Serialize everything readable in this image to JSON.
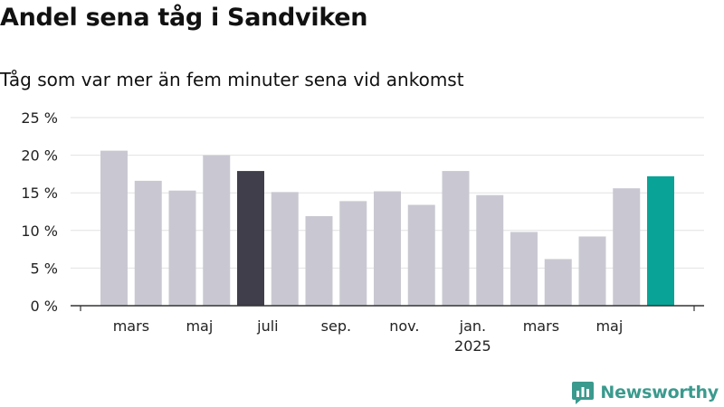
{
  "title": "Andel sena tåg i Sandviken",
  "subtitle": "Tåg som var mer än fem minuter sena vid ankomst",
  "brand": {
    "name": "Newsworthy",
    "icon": "chart-logo-icon",
    "color": "#3b9a8e"
  },
  "chart_data": {
    "type": "bar",
    "title": "Andel sena tåg i Sandviken",
    "subtitle": "Tåg som var mer än fem minuter sena vid ankomst",
    "categories": [
      "2024-02",
      "2024-03",
      "2024-04",
      "2024-05",
      "2024-06",
      "2024-07",
      "2024-08",
      "2024-09",
      "2024-10",
      "2024-11",
      "2024-12",
      "2025-01",
      "2025-02",
      "2025-03",
      "2025-04",
      "2025-05",
      "2025-06"
    ],
    "values": [
      20.6,
      16.6,
      15.3,
      20.0,
      17.9,
      15.1,
      11.9,
      13.9,
      15.2,
      13.4,
      17.9,
      14.7,
      9.8,
      6.2,
      9.2,
      15.6,
      17.2
    ],
    "bar_colors": [
      "#c9c8d2",
      "#c9c8d2",
      "#c9c8d2",
      "#c9c8d2",
      "#3f3e4a",
      "#c9c8d2",
      "#c9c8d2",
      "#c9c8d2",
      "#c9c8d2",
      "#c9c8d2",
      "#c9c8d2",
      "#c9c8d2",
      "#c9c8d2",
      "#c9c8d2",
      "#c9c8d2",
      "#c9c8d2",
      "#0aa397"
    ],
    "ylim": [
      0,
      25
    ],
    "yticks": [
      0,
      5,
      10,
      15,
      20,
      25
    ],
    "ytick_labels": [
      "0 %",
      "5 %",
      "10 %",
      "15 %",
      "20 %",
      "25 %"
    ],
    "xtick_labels": [
      {
        "after": 0,
        "label": "mars"
      },
      {
        "after": 2,
        "label": "maj"
      },
      {
        "after": 4,
        "label": "juli"
      },
      {
        "after": 6,
        "label": "sep."
      },
      {
        "after": 8,
        "label": "nov."
      },
      {
        "after": 10,
        "label": "jan.",
        "sub": "2025"
      },
      {
        "after": 12,
        "label": "mars"
      },
      {
        "after": 14,
        "label": "maj"
      }
    ],
    "xlabel": "",
    "ylabel": "",
    "grid": true,
    "legend": "none"
  }
}
